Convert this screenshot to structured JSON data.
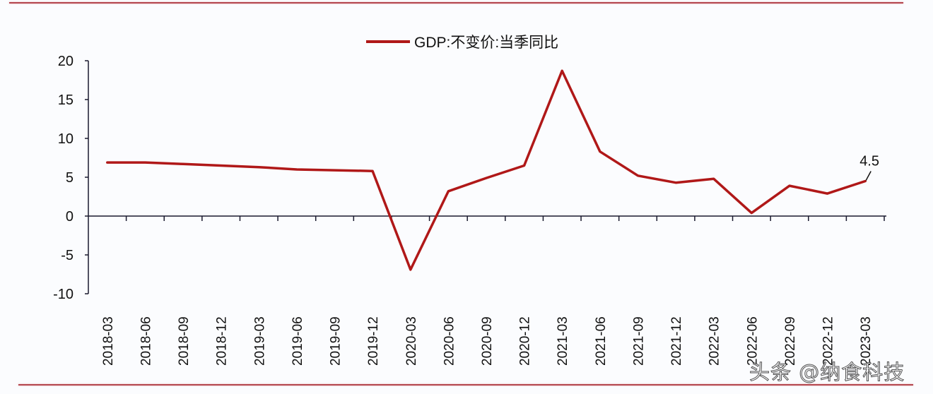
{
  "chart_data": {
    "type": "line",
    "title": "",
    "xlabel": "",
    "ylabel": "",
    "ylim": [
      -10,
      20
    ],
    "yticks": [
      20,
      15,
      10,
      5,
      0,
      -5,
      -10
    ],
    "grid": false,
    "legend_position": "top-center",
    "categories": [
      "2018-03",
      "2018-06",
      "2018-09",
      "2018-12",
      "2019-03",
      "2019-06",
      "2019-09",
      "2019-12",
      "2020-03",
      "2020-06",
      "2020-09",
      "2020-12",
      "2021-03",
      "2021-06",
      "2021-09",
      "2021-12",
      "2022-03",
      "2022-06",
      "2022-09",
      "2022-12",
      "2023-03"
    ],
    "series": [
      {
        "name": "GDP:不变价:当季同比",
        "color": "#b01818",
        "values": [
          6.9,
          6.9,
          6.7,
          6.5,
          6.3,
          6.0,
          5.9,
          5.8,
          -6.9,
          3.2,
          4.9,
          6.5,
          18.7,
          8.3,
          5.2,
          4.3,
          4.8,
          0.4,
          3.9,
          2.9,
          4.5
        ]
      }
    ],
    "annotations": [
      {
        "category": "2023-03",
        "text": "4.5"
      }
    ]
  },
  "legend": {
    "label": "GDP:不变价:当季同比"
  },
  "annotation": {
    "last_value_label": "4.5"
  },
  "watermark": {
    "text": "头条 @纳食科技"
  },
  "colors": {
    "line": "#b01818",
    "rule": "#b5474f",
    "axis": "#1a1a2e"
  }
}
